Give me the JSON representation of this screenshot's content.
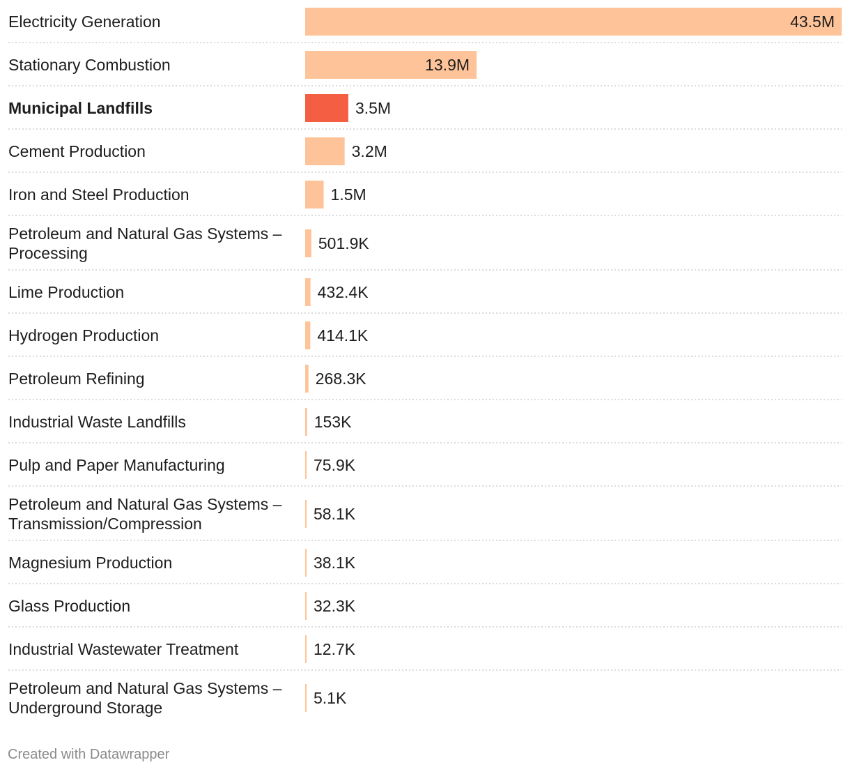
{
  "chart_data": {
    "type": "bar",
    "orientation": "horizontal",
    "title": "",
    "xlabel": "",
    "ylabel": "",
    "colors": {
      "default": "#fec398",
      "highlight": "#f45f43"
    },
    "categories": [
      "Electricity Generation",
      "Stationary Combustion",
      "Municipal Landfills",
      "Cement Production",
      "Iron and Steel Production",
      "Petroleum and Natural Gas Systems – Processing",
      "Lime Production",
      "Hydrogen Production",
      "Petroleum Refining",
      "Industrial Waste Landfills",
      "Pulp and Paper Manufacturing",
      "Petroleum and Natural Gas Systems – Transmission/Compression",
      "Magnesium Production",
      "Glass Production",
      "Industrial Wastewater Treatment",
      "Petroleum and Natural Gas Systems – Underground Storage"
    ],
    "values": [
      43500000,
      13900000,
      3500000,
      3200000,
      1500000,
      501900,
      432400,
      414100,
      268300,
      153000,
      75900,
      58100,
      38100,
      32300,
      12700,
      5100
    ],
    "value_labels": [
      "43.5M",
      "13.9M",
      "3.5M",
      "3.2M",
      "1.5M",
      "501.9K",
      "432.4K",
      "414.1K",
      "268.3K",
      "153K",
      "75.9K",
      "58.1K",
      "38.1K",
      "32.3K",
      "12.7K",
      "5.1K"
    ],
    "highlighted": [
      "Municipal Landfills"
    ],
    "label_lines": [
      [
        "Electricity Generation"
      ],
      [
        "Stationary Combustion"
      ],
      [
        "Municipal Landfills"
      ],
      [
        "Cement Production"
      ],
      [
        "Iron and Steel Production"
      ],
      [
        "Petroleum and Natural Gas Systems –",
        "Processing"
      ],
      [
        "Lime Production"
      ],
      [
        "Hydrogen Production"
      ],
      [
        "Petroleum Refining"
      ],
      [
        "Industrial Waste Landfills"
      ],
      [
        "Pulp and Paper Manufacturing"
      ],
      [
        "Petroleum and Natural Gas Systems –",
        "Transmission/Compression"
      ],
      [
        "Magnesium Production"
      ],
      [
        "Glass Production"
      ],
      [
        "Industrial Wastewater Treatment"
      ],
      [
        "Petroleum and Natural Gas Systems –",
        "Underground Storage"
      ]
    ],
    "xlim": [
      0,
      43500000
    ]
  },
  "footer": {
    "credit": "Created with Datawrapper"
  }
}
